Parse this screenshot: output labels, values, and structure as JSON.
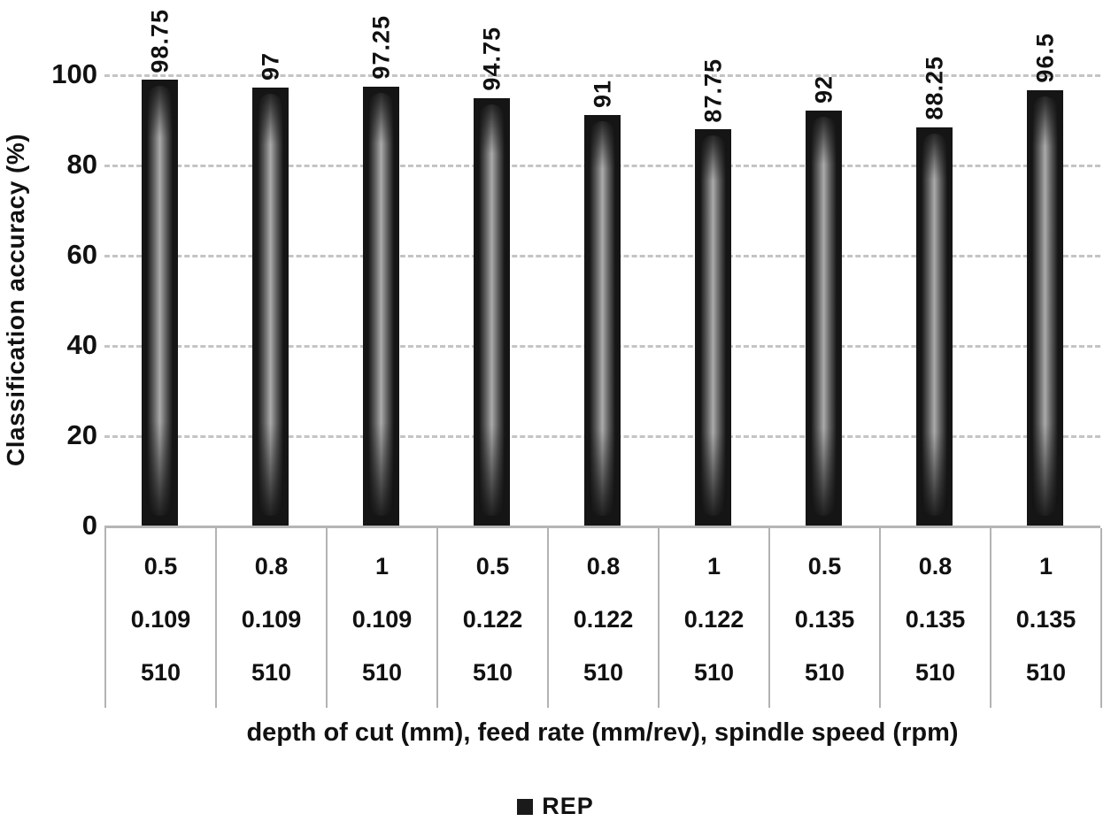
{
  "chart_data": {
    "type": "bar",
    "title": "",
    "ylabel": "Classification accuracy (%)",
    "xlabel": "depth of cut (mm), feed rate (mm/rev), spindle speed (rpm)",
    "ylim": [
      0,
      100
    ],
    "yticks": [
      0,
      20,
      40,
      60,
      80,
      100
    ],
    "grid": "horizontal-dashed",
    "series": [
      {
        "name": "REP",
        "values": [
          98.75,
          97,
          97.25,
          94.75,
          91,
          87.75,
          92,
          88.25,
          96.5
        ],
        "value_labels": [
          "98.75",
          "97",
          "97.25",
          "94.75",
          "91",
          "87.75",
          "92",
          "88.25",
          "96.5"
        ]
      }
    ],
    "category_row_names": [
      "depth of cut (mm)",
      "feed rate (mm/rev)",
      "spindle speed (rpm)"
    ],
    "category_rows": [
      [
        "0.5",
        "0.8",
        "1",
        "0.5",
        "0.8",
        "1",
        "0.5",
        "0.8",
        "1"
      ],
      [
        "0.109",
        "0.109",
        "0.109",
        "0.122",
        "0.122",
        "0.122",
        "0.135",
        "0.135",
        "0.135"
      ],
      [
        "510",
        "510",
        "510",
        "510",
        "510",
        "510",
        "510",
        "510",
        "510"
      ]
    ],
    "legend": {
      "position": "bottom-center",
      "entries": [
        {
          "label": "REP",
          "color": "#1a1a1a"
        }
      ]
    },
    "colors": {
      "bar_outer": "#151515",
      "bar_highlight": "#ababab",
      "gridline": "#c4c4c4",
      "axis_line": "#b5b5b5",
      "text": "#111111",
      "background": "#ffffff"
    }
  }
}
